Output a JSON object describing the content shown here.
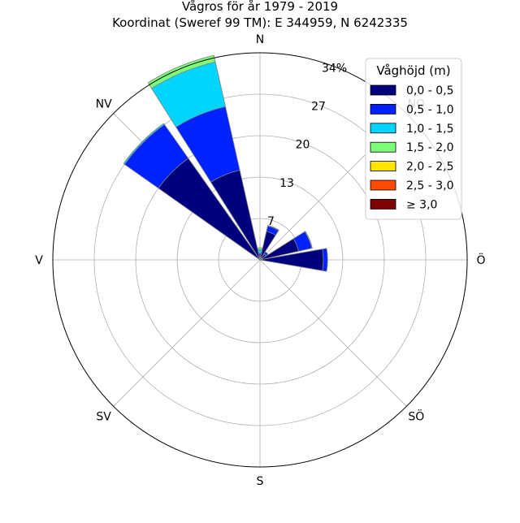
{
  "chart_data": {
    "type": "windrose",
    "title": "Vågros för år 1979 - 2019",
    "subtitle": "Koordinat (Sweref 99 TM): E 344959, N 6242335",
    "directions": [
      "N",
      "NO",
      "Ö",
      "SÖ",
      "S",
      "SV",
      "V",
      "NV"
    ],
    "radial_ticks": [
      "7",
      "13",
      "20",
      "27",
      "34%"
    ],
    "radial_tick_values": [
      6.8,
      13.6,
      20.4,
      27.2,
      34
    ],
    "rmax": 34,
    "grid": true,
    "legend": {
      "title": "Våghöjd (m)",
      "placement": "top-right",
      "entries": [
        {
          "label": "0,0 - 0,5",
          "color": "#00007f"
        },
        {
          "label": "0,5 - 1,0",
          "color": "#0022ff"
        },
        {
          "label": "1,0 - 1,5",
          "color": "#00d4ff"
        },
        {
          "label": "1,5 - 2,0",
          "color": "#7dff7a"
        },
        {
          "label": "2,0 - 2,5",
          "color": "#ffe500"
        },
        {
          "label": "2,5 - 3,0",
          "color": "#ff4a00"
        },
        {
          "label": "≥ 3,0",
          "color": "#7f0000"
        }
      ]
    },
    "sectors": [
      {
        "direction_deg": 0,
        "segments": [
          0.6,
          0.5,
          0.6,
          0.3,
          0,
          0,
          0
        ]
      },
      {
        "direction_deg": 22.5,
        "segments": [
          4.8,
          0.9,
          0.1,
          0,
          0,
          0,
          0
        ]
      },
      {
        "direction_deg": 45,
        "segments": [
          1.2,
          0.4,
          0,
          0,
          0,
          0,
          0
        ]
      },
      {
        "direction_deg": 67.5,
        "segments": [
          6.5,
          2.2,
          0.1,
          0,
          0,
          0,
          0
        ]
      },
      {
        "direction_deg": 90,
        "segments": [
          10.4,
          0.7,
          0,
          0,
          0,
          0,
          0
        ]
      },
      {
        "direction_deg": 112.5,
        "segments": [
          0,
          0,
          0,
          0,
          0,
          0,
          0
        ]
      },
      {
        "direction_deg": 135,
        "segments": [
          0,
          0,
          0,
          0,
          0,
          0,
          0
        ]
      },
      {
        "direction_deg": 157.5,
        "segments": [
          0,
          0,
          0,
          0,
          0,
          0,
          0
        ]
      },
      {
        "direction_deg": 180,
        "segments": [
          0,
          0,
          0,
          0,
          0,
          0,
          0
        ]
      },
      {
        "direction_deg": 202.5,
        "segments": [
          0,
          0,
          0,
          0,
          0,
          0,
          0
        ]
      },
      {
        "direction_deg": 225,
        "segments": [
          0,
          0,
          0,
          0,
          0,
          0,
          0
        ]
      },
      {
        "direction_deg": 247.5,
        "segments": [
          0,
          0,
          0,
          0,
          0,
          0,
          0
        ]
      },
      {
        "direction_deg": 270,
        "segments": [
          0,
          0,
          0,
          0,
          0,
          0,
          0
        ]
      },
      {
        "direction_deg": 292.5,
        "segments": [
          0,
          0,
          0,
          0,
          0,
          0,
          0
        ]
      },
      {
        "direction_deg": 315,
        "segments": [
          20.4,
          6.8,
          0.2,
          0,
          0,
          0,
          0
        ]
      },
      {
        "direction_deg": 337.5,
        "segments": [
          15.1,
          10.7,
          7.5,
          1.1,
          0,
          0,
          0
        ]
      }
    ]
  }
}
